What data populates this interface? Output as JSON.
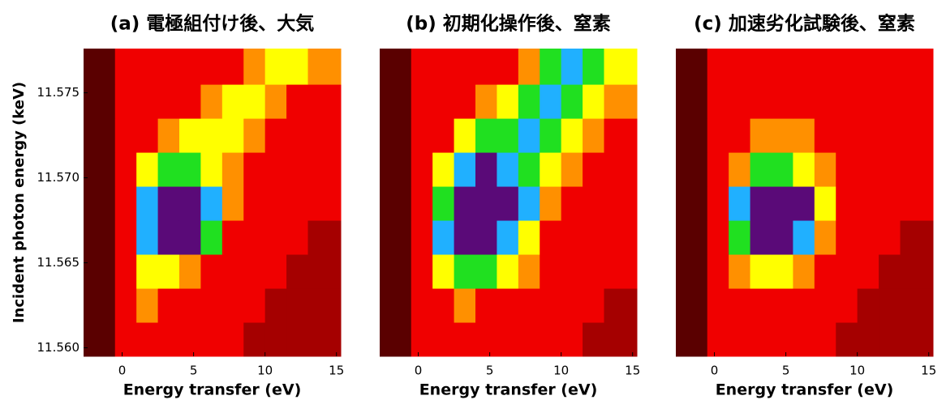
{
  "chart_data": [
    {
      "type": "heatmap",
      "title": "(a) 電極組付け後、大気",
      "xlabel": "Energy transfer (eV)",
      "ylabel": "Incident photon energy (keV)",
      "xlim": [
        -2.7,
        15.3
      ],
      "xticks": [
        0,
        5,
        10,
        15
      ],
      "ylim": [
        11.5595,
        11.5776
      ],
      "yticks": [
        {
          "value": 11.56,
          "label": "11.560"
        },
        11.565,
        {
          "value": 11.57,
          "label": "11.570"
        },
        11.575
      ],
      "zlim": [
        0,
        6
      ],
      "colormap": [
        "#5a0000",
        "#f00000",
        "#ff9000",
        "#ffff00",
        "#20e020",
        "#20b0ff",
        "#5a0a78"
      ],
      "x_edges": [
        -2.7,
        -0.5,
        1,
        2.5,
        4,
        5.5,
        7,
        8.5,
        10,
        11.5,
        13,
        15.3
      ],
      "y_edges": [
        11.5595,
        11.5615,
        11.5635,
        11.5655,
        11.5675,
        11.5695,
        11.5715,
        11.5735,
        11.5755,
        11.5776
      ],
      "z": [
        [
          0,
          1,
          1,
          1,
          1,
          1,
          1,
          0.5,
          0.5,
          0.5,
          0.5
        ],
        [
          0,
          1,
          2,
          1,
          1,
          1,
          1,
          1,
          0.5,
          0.5,
          0.5
        ],
        [
          0,
          1,
          3,
          3,
          2,
          1,
          1,
          1,
          1,
          0.5,
          0.5
        ],
        [
          0,
          1,
          5,
          6,
          6,
          4,
          1,
          1,
          1,
          1,
          0.5
        ],
        [
          0,
          1,
          5,
          6,
          6,
          5,
          2,
          1,
          1,
          1,
          1
        ],
        [
          0,
          1,
          3,
          4,
          4,
          3,
          2,
          1,
          1,
          1,
          1
        ],
        [
          0,
          1,
          1,
          2,
          3,
          3,
          3,
          2,
          1,
          1,
          1
        ],
        [
          0,
          1,
          1,
          1,
          1,
          2,
          3,
          3,
          2,
          1,
          1
        ],
        [
          0,
          1,
          1,
          1,
          1,
          1,
          1,
          2,
          3,
          3,
          2
        ]
      ]
    },
    {
      "type": "heatmap",
      "title": "(b) 初期化操作後、窒素",
      "xlabel": "Energy transfer (eV)",
      "xlim": [
        -2.7,
        15.3
      ],
      "xticks": [
        0,
        5,
        10,
        15
      ],
      "ylim": [
        11.5595,
        11.5776
      ],
      "zlim": [
        0,
        6
      ],
      "colormap": [
        "#5a0000",
        "#f00000",
        "#ff9000",
        "#ffff00",
        "#20e020",
        "#20b0ff",
        "#5a0a78"
      ],
      "x_edges": [
        -2.7,
        -0.5,
        1,
        2.5,
        4,
        5.5,
        7,
        8.5,
        10,
        11.5,
        13,
        15.3
      ],
      "y_edges": [
        11.5595,
        11.5615,
        11.5635,
        11.5655,
        11.5675,
        11.5695,
        11.5715,
        11.5735,
        11.5755,
        11.5776
      ],
      "z": [
        [
          0,
          1,
          1,
          1,
          1,
          1,
          1,
          1,
          1,
          0.5,
          0.5
        ],
        [
          0,
          1,
          1,
          2,
          1,
          1,
          1,
          1,
          1,
          1,
          0.5
        ],
        [
          0,
          1,
          3,
          4,
          4,
          3,
          2,
          1,
          1,
          1,
          1
        ],
        [
          0,
          1,
          5,
          6,
          6,
          5,
          3,
          1,
          1,
          1,
          1
        ],
        [
          0,
          1,
          4,
          6,
          6,
          6,
          5,
          2,
          1,
          1,
          1
        ],
        [
          0,
          1,
          3,
          5,
          6,
          5,
          4,
          3,
          2,
          1,
          1
        ],
        [
          0,
          1,
          1,
          3,
          4,
          4,
          5,
          4,
          3,
          2,
          1
        ],
        [
          0,
          1,
          1,
          1,
          2,
          3,
          4,
          5,
          4,
          3,
          2
        ],
        [
          0,
          1,
          1,
          1,
          1,
          1,
          2,
          4,
          5,
          4,
          3
        ]
      ]
    },
    {
      "type": "heatmap",
      "title": "(c) 加速劣化試験後、窒素",
      "xlabel": "Energy transfer (eV)",
      "xlim": [
        -2.7,
        15.3
      ],
      "xticks": [
        0,
        5,
        10,
        15
      ],
      "ylim": [
        11.5595,
        11.5776
      ],
      "zlim": [
        0,
        6
      ],
      "colormap": [
        "#5a0000",
        "#f00000",
        "#ff9000",
        "#ffff00",
        "#20e020",
        "#20b0ff",
        "#5a0a78"
      ],
      "x_edges": [
        -2.7,
        -0.5,
        1,
        2.5,
        4,
        5.5,
        7,
        8.5,
        10,
        11.5,
        13,
        15.3
      ],
      "y_edges": [
        11.5595,
        11.5615,
        11.5635,
        11.5655,
        11.5675,
        11.5695,
        11.5715,
        11.5735,
        11.5755,
        11.5776
      ],
      "z": [
        [
          0,
          1,
          1,
          1,
          1,
          1,
          1,
          0.5,
          0.5,
          0.5,
          0.5
        ],
        [
          0,
          1,
          1,
          1,
          1,
          1,
          1,
          1,
          0.5,
          0.5,
          0.5
        ],
        [
          0,
          1,
          2,
          3,
          3,
          2,
          1,
          1,
          1,
          0.5,
          0.5
        ],
        [
          0,
          1,
          4,
          6,
          6,
          5,
          2,
          1,
          1,
          1,
          0.5
        ],
        [
          0,
          1,
          5,
          6,
          6,
          6,
          3,
          1,
          1,
          1,
          1
        ],
        [
          0,
          1,
          2,
          4,
          4,
          3,
          2,
          1,
          1,
          1,
          1
        ],
        [
          0,
          1,
          1,
          2,
          2,
          2,
          1,
          1,
          1,
          1,
          1
        ],
        [
          0,
          1,
          1,
          1,
          1,
          1,
          1,
          1,
          1,
          1,
          1
        ],
        [
          0,
          1,
          1,
          1,
          1,
          1,
          1,
          1,
          1,
          1,
          1
        ]
      ]
    }
  ]
}
